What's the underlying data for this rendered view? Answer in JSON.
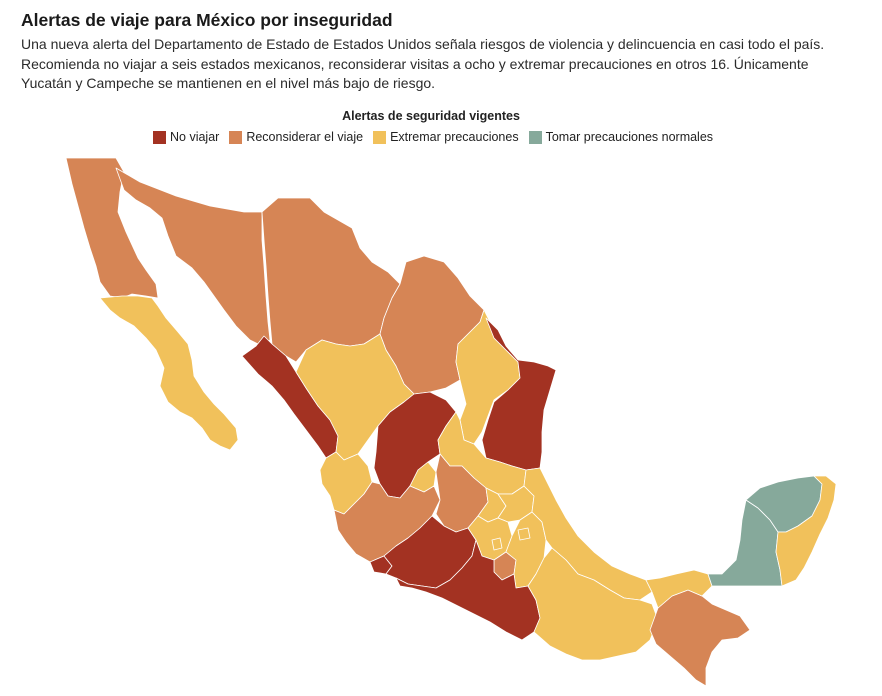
{
  "header": {
    "title": "Alertas de viaje para México por inseguridad",
    "subtitle": "Una nueva alerta del Departamento de Estado de Estados Unidos señala riesgos de violencia y delincuencia en casi todo el país. Recomienda no viajar a seis estados mexicanos, reconsiderar visitas a ocho y extremar precauciones en otros 16. Únicamente Yucatán y Campeche se mantienen en el nivel más bajo de riesgo."
  },
  "legend": {
    "title": "Alertas de seguridad vigentes",
    "items": [
      {
        "label": "No viajar",
        "color": "#a33222"
      },
      {
        "label": "Reconsiderar el viaje",
        "color": "#d68555"
      },
      {
        "label": "Extremar precauciones",
        "color": "#f1c15b"
      },
      {
        "label": "Tomar precauciones normales",
        "color": "#86a99b"
      }
    ]
  },
  "colors": {
    "no_viajar": "#a33222",
    "reconsiderar": "#d68555",
    "extremar": "#f1c15b",
    "normales": "#86a99b"
  },
  "map": {
    "regions": [
      {
        "name": "baja-california",
        "level": "reconsiderar"
      },
      {
        "name": "baja-california-sur",
        "level": "extremar"
      },
      {
        "name": "sonora",
        "level": "reconsiderar"
      },
      {
        "name": "chihuahua",
        "level": "reconsiderar"
      },
      {
        "name": "coahuila",
        "level": "reconsiderar"
      },
      {
        "name": "nuevo-leon",
        "level": "extremar"
      },
      {
        "name": "tamaulipas",
        "level": "no_viajar"
      },
      {
        "name": "sinaloa",
        "level": "no_viajar"
      },
      {
        "name": "durango",
        "level": "extremar"
      },
      {
        "name": "zacatecas",
        "level": "no_viajar"
      },
      {
        "name": "san-luis-potosi",
        "level": "extremar"
      },
      {
        "name": "nayarit",
        "level": "extremar"
      },
      {
        "name": "aguascalientes",
        "level": "extremar"
      },
      {
        "name": "jalisco",
        "level": "reconsiderar"
      },
      {
        "name": "guanajuato",
        "level": "reconsiderar"
      },
      {
        "name": "queretaro",
        "level": "extremar"
      },
      {
        "name": "hidalgo",
        "level": "extremar"
      },
      {
        "name": "colima",
        "level": "no_viajar"
      },
      {
        "name": "michoacan",
        "level": "no_viajar"
      },
      {
        "name": "estado-de-mexico",
        "level": "extremar"
      },
      {
        "name": "cdmx",
        "level": "extremar"
      },
      {
        "name": "morelos",
        "level": "reconsiderar"
      },
      {
        "name": "puebla",
        "level": "extremar"
      },
      {
        "name": "tlaxcala",
        "level": "extremar"
      },
      {
        "name": "veracruz",
        "level": "extremar"
      },
      {
        "name": "guerrero",
        "level": "no_viajar"
      },
      {
        "name": "oaxaca",
        "level": "extremar"
      },
      {
        "name": "chiapas",
        "level": "reconsiderar"
      },
      {
        "name": "tabasco",
        "level": "extremar"
      },
      {
        "name": "campeche",
        "level": "normales"
      },
      {
        "name": "yucatan",
        "level": "normales"
      },
      {
        "name": "quintana-roo",
        "level": "extremar"
      }
    ]
  }
}
